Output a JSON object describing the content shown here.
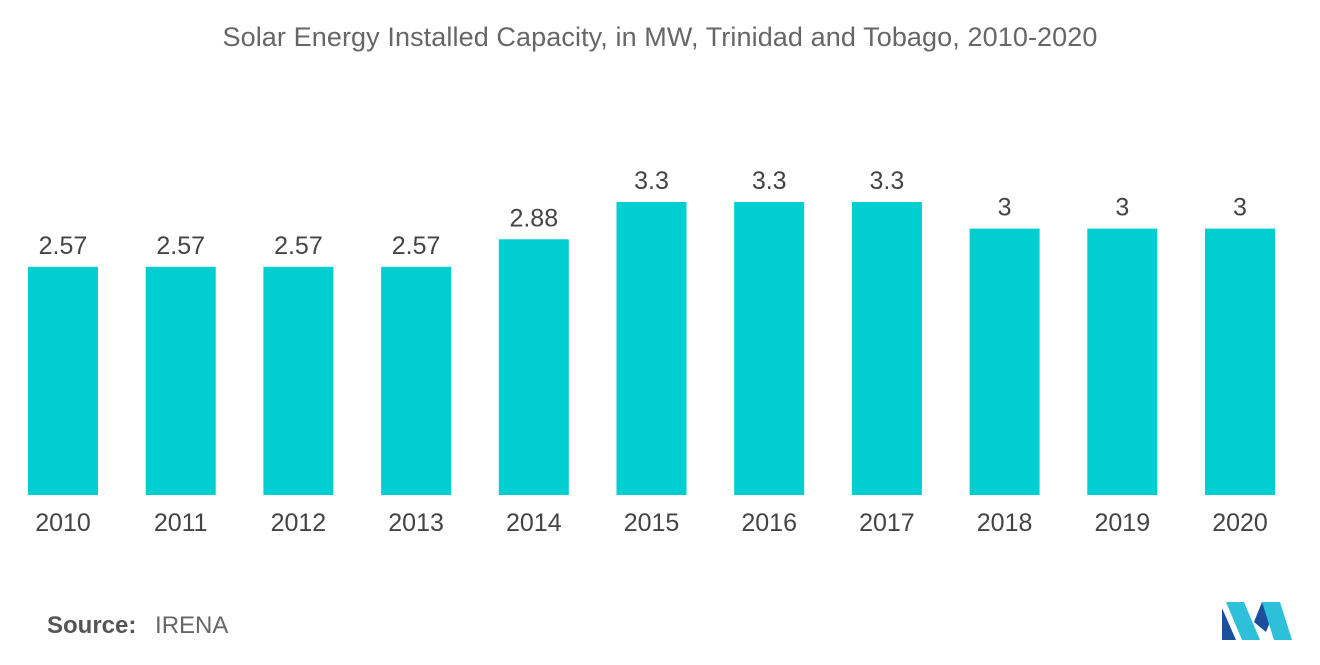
{
  "chart_data": {
    "type": "bar",
    "title": "Solar Energy Installed Capacity, in MW, Trinidad and Tobago, 2010-2020",
    "categories": [
      "2010",
      "2011",
      "2012",
      "2013",
      "2014",
      "2015",
      "2016",
      "2017",
      "2018",
      "2019",
      "2020"
    ],
    "values": [
      2.57,
      2.57,
      2.57,
      2.57,
      2.88,
      3.3,
      3.3,
      3.3,
      3,
      3,
      3
    ],
    "value_labels": [
      "2.57",
      "2.57",
      "2.57",
      "2.57",
      "2.88",
      "3.3",
      "3.3",
      "3.3",
      "3",
      "3",
      "3"
    ],
    "xlabel": "",
    "ylabel": "",
    "ylim": [
      0,
      3.3
    ],
    "grid": false,
    "bar_color": "#00CED1"
  },
  "source": {
    "label": "Source:",
    "value": "IRENA"
  },
  "logo": {
    "icon": "mordor-intelligence-logo-icon",
    "colors": [
      "#1B4F9C",
      "#2DC0D8"
    ]
  }
}
